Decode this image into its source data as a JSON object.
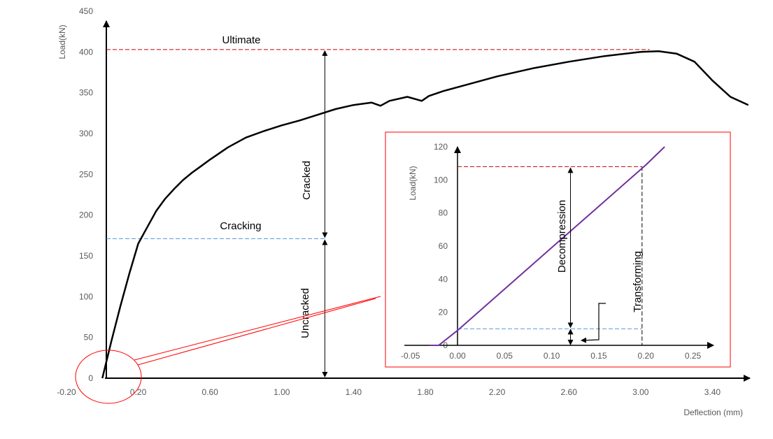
{
  "chart_data": [
    {
      "type": "line",
      "xlabel": "Deflection (mm)",
      "ylabel": "Load(kN)",
      "xlim": [
        -0.2,
        3.6
      ],
      "ylim": [
        0,
        450
      ],
      "x_ticks": [
        "-0.20",
        "0.20",
        "0.60",
        "1.00",
        "1.40",
        "1.80",
        "2.20",
        "2.60",
        "3.00",
        "3.40"
      ],
      "y_ticks": [
        "0",
        "50",
        "100",
        "150",
        "200",
        "250",
        "300",
        "350",
        "400",
        "450"
      ],
      "grid": false,
      "series": [
        {
          "color": "#000000",
          "x": [
            0.0,
            0.05,
            0.1,
            0.15,
            0.2,
            0.25,
            0.3,
            0.35,
            0.4,
            0.45,
            0.5,
            0.55,
            0.6,
            0.7,
            0.8,
            0.9,
            1.0,
            1.1,
            1.2,
            1.3,
            1.4,
            1.5,
            1.55,
            1.6,
            1.7,
            1.78,
            1.82,
            1.9,
            2.0,
            2.2,
            2.4,
            2.6,
            2.8,
            3.0,
            3.1,
            3.2,
            3.3,
            3.4,
            3.5,
            3.6
          ],
          "y": [
            0,
            45,
            88,
            128,
            165,
            185,
            205,
            220,
            232,
            243,
            252,
            260,
            268,
            283,
            295,
            303,
            310,
            316,
            323,
            330,
            335,
            338,
            334,
            340,
            345,
            340,
            346,
            352,
            358,
            370,
            380,
            388,
            395,
            400,
            401,
            398,
            388,
            365,
            345,
            335
          ]
        }
      ],
      "annotations": {
        "ultimate": {
          "text": "Ultimate",
          "load": 403
        },
        "cracking": {
          "text": "Cracking",
          "load": 171
        },
        "cracked": {
          "text": "Cracked"
        },
        "uncracked": {
          "text": "Uncracked"
        }
      },
      "colors": {
        "ultimate_line": "#c00000",
        "cracking_line": "#5b9bd5",
        "zoom_frame": "#ff0000"
      }
    },
    {
      "type": "line",
      "xlabel": "",
      "ylabel": "Load(kN)",
      "xlim": [
        -0.05,
        0.25
      ],
      "ylim": [
        0,
        120
      ],
      "x_ticks": [
        "-0.05",
        "0.00",
        "0.05",
        "0.10",
        "0.15",
        "0.20",
        "0.25"
      ],
      "y_ticks": [
        "0",
        "20",
        "40",
        "60",
        "80",
        "100",
        "120"
      ],
      "grid": false,
      "series": [
        {
          "color": "#7030a0",
          "x": [
            -0.03,
            -0.02,
            0.0,
            0.05,
            0.1,
            0.15,
            0.2,
            0.22
          ],
          "y": [
            0,
            0,
            9,
            34,
            59,
            84,
            109,
            120
          ]
        }
      ],
      "annotations": {
        "decompression": {
          "text": "Decompression",
          "load_low": 10,
          "load_high": 108
        },
        "transforming": {
          "text": "Transforming",
          "deflection": 0.196
        }
      },
      "colors": {
        "upper_line": "#c00000",
        "lower_line": "#5b9bd5",
        "frame": "#ff0000"
      }
    }
  ]
}
